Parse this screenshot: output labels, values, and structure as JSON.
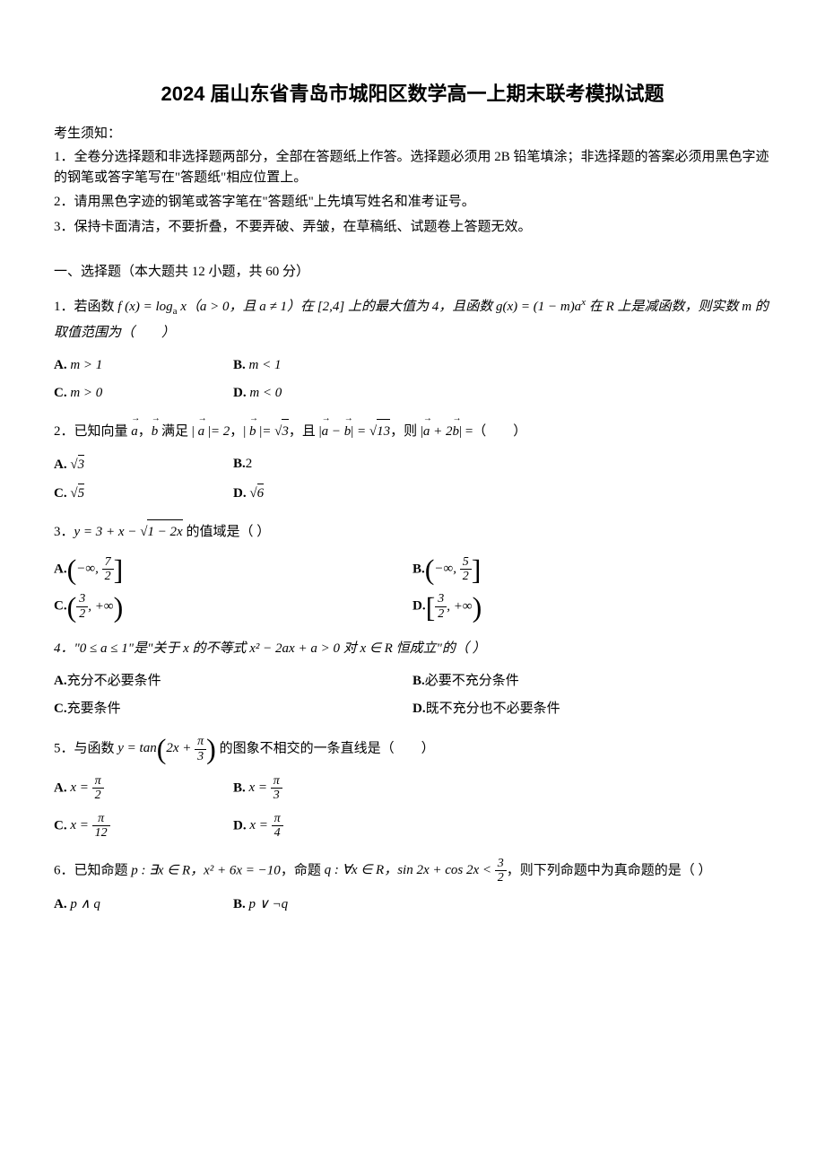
{
  "title": "2024 届山东省青岛市城阳区数学高一上期末联考模拟试题",
  "notice_header": "考生须知：",
  "notices": [
    "1．全卷分选择题和非选择题两部分，全部在答题纸上作答。选择题必须用 2B 铅笔填涂；非选择题的答案必须用黑色字迹的钢笔或答字笔写在\"答题纸\"相应位置上。",
    "2．请用黑色字迹的钢笔或答字笔在\"答题纸\"上先填写姓名和准考证号。",
    "3．保持卡面清洁，不要折叠，不要弄破、弄皱，在草稿纸、试题卷上答题无效。"
  ],
  "section1_header": "一、选择题（本大题共 12 小题，共 60 分）",
  "q1": {
    "stem_pre": "1．若函数 ",
    "stem_f": "f (x) = log",
    "stem_mid1": " x（a > 0，且 a ≠ 1）在 [2,4] 上的最大值为 4，且函数 ",
    "stem_g": "g(x) = (1 − m)a",
    "stem_mid2": " 在 R 上是减函数，则实数 m 的取值范围为（　　）",
    "optA_label": "A.",
    "optA": " m > 1",
    "optB_label": "B.",
    "optB": " m < 1",
    "optC_label": "C.",
    "optC": " m > 0",
    "optD_label": "D.",
    "optD": " m < 0"
  },
  "q2": {
    "stem_pre": "2．已知向量 ",
    "stem_mid": " 满足 ",
    "optA_label": "A.",
    "optA_val": "3",
    "optB_label": "B.",
    "optB_val": "2",
    "optC_label": "C.",
    "optC_val": "5",
    "optD_label": "D.",
    "optD_val": "6"
  },
  "q3": {
    "stem_pre": "3．",
    "stem_post": " 的值域是（ ）",
    "optA_label": "A.",
    "optA_num": "7",
    "optA_den": "2",
    "optB_label": "B.",
    "optB_num": "5",
    "optB_den": "2",
    "optC_label": "C.",
    "optC_num": "3",
    "optC_den": "2",
    "optD_label": "D.",
    "optD_num": "3",
    "optD_den": "2"
  },
  "q4": {
    "stem": "4．\"0 ≤ a ≤ 1\"是\"关于 x 的不等式 x² − 2ax + a > 0 对 x ∈ R 恒成立\"的（ ）",
    "optA_label": "A.",
    "optA": "充分不必要条件",
    "optB_label": "B.",
    "optB": "必要不充分条件",
    "optC_label": "C.",
    "optC": "充要条件",
    "optD_label": "D.",
    "optD": "既不充分也不必要条件"
  },
  "q5": {
    "stem_pre": "5．与函数 ",
    "stem_post": " 的图象不相交的一条直线是（　　）",
    "optA_label": "A.",
    "optA_den": "2",
    "optB_label": "B.",
    "optB_den": "3",
    "optC_label": "C.",
    "optC_den": "12",
    "optD_label": "D.",
    "optD_den": "4"
  },
  "q6": {
    "stem_pre": "6．已知命题 ",
    "stem_p": "p : ∃x ∈ R，x² + 6x = −10",
    "stem_mid": "，命题 ",
    "stem_q_pre": "q : ∀x ∈ R，sin 2x + cos 2x < ",
    "stem_q_num": "3",
    "stem_q_den": "2",
    "stem_post": "，则下列命题中为真命题的是（ ）",
    "optA_label": "A.",
    "optA": " p ∧ q",
    "optB_label": "B.",
    "optB": " p ∨ ¬q"
  }
}
